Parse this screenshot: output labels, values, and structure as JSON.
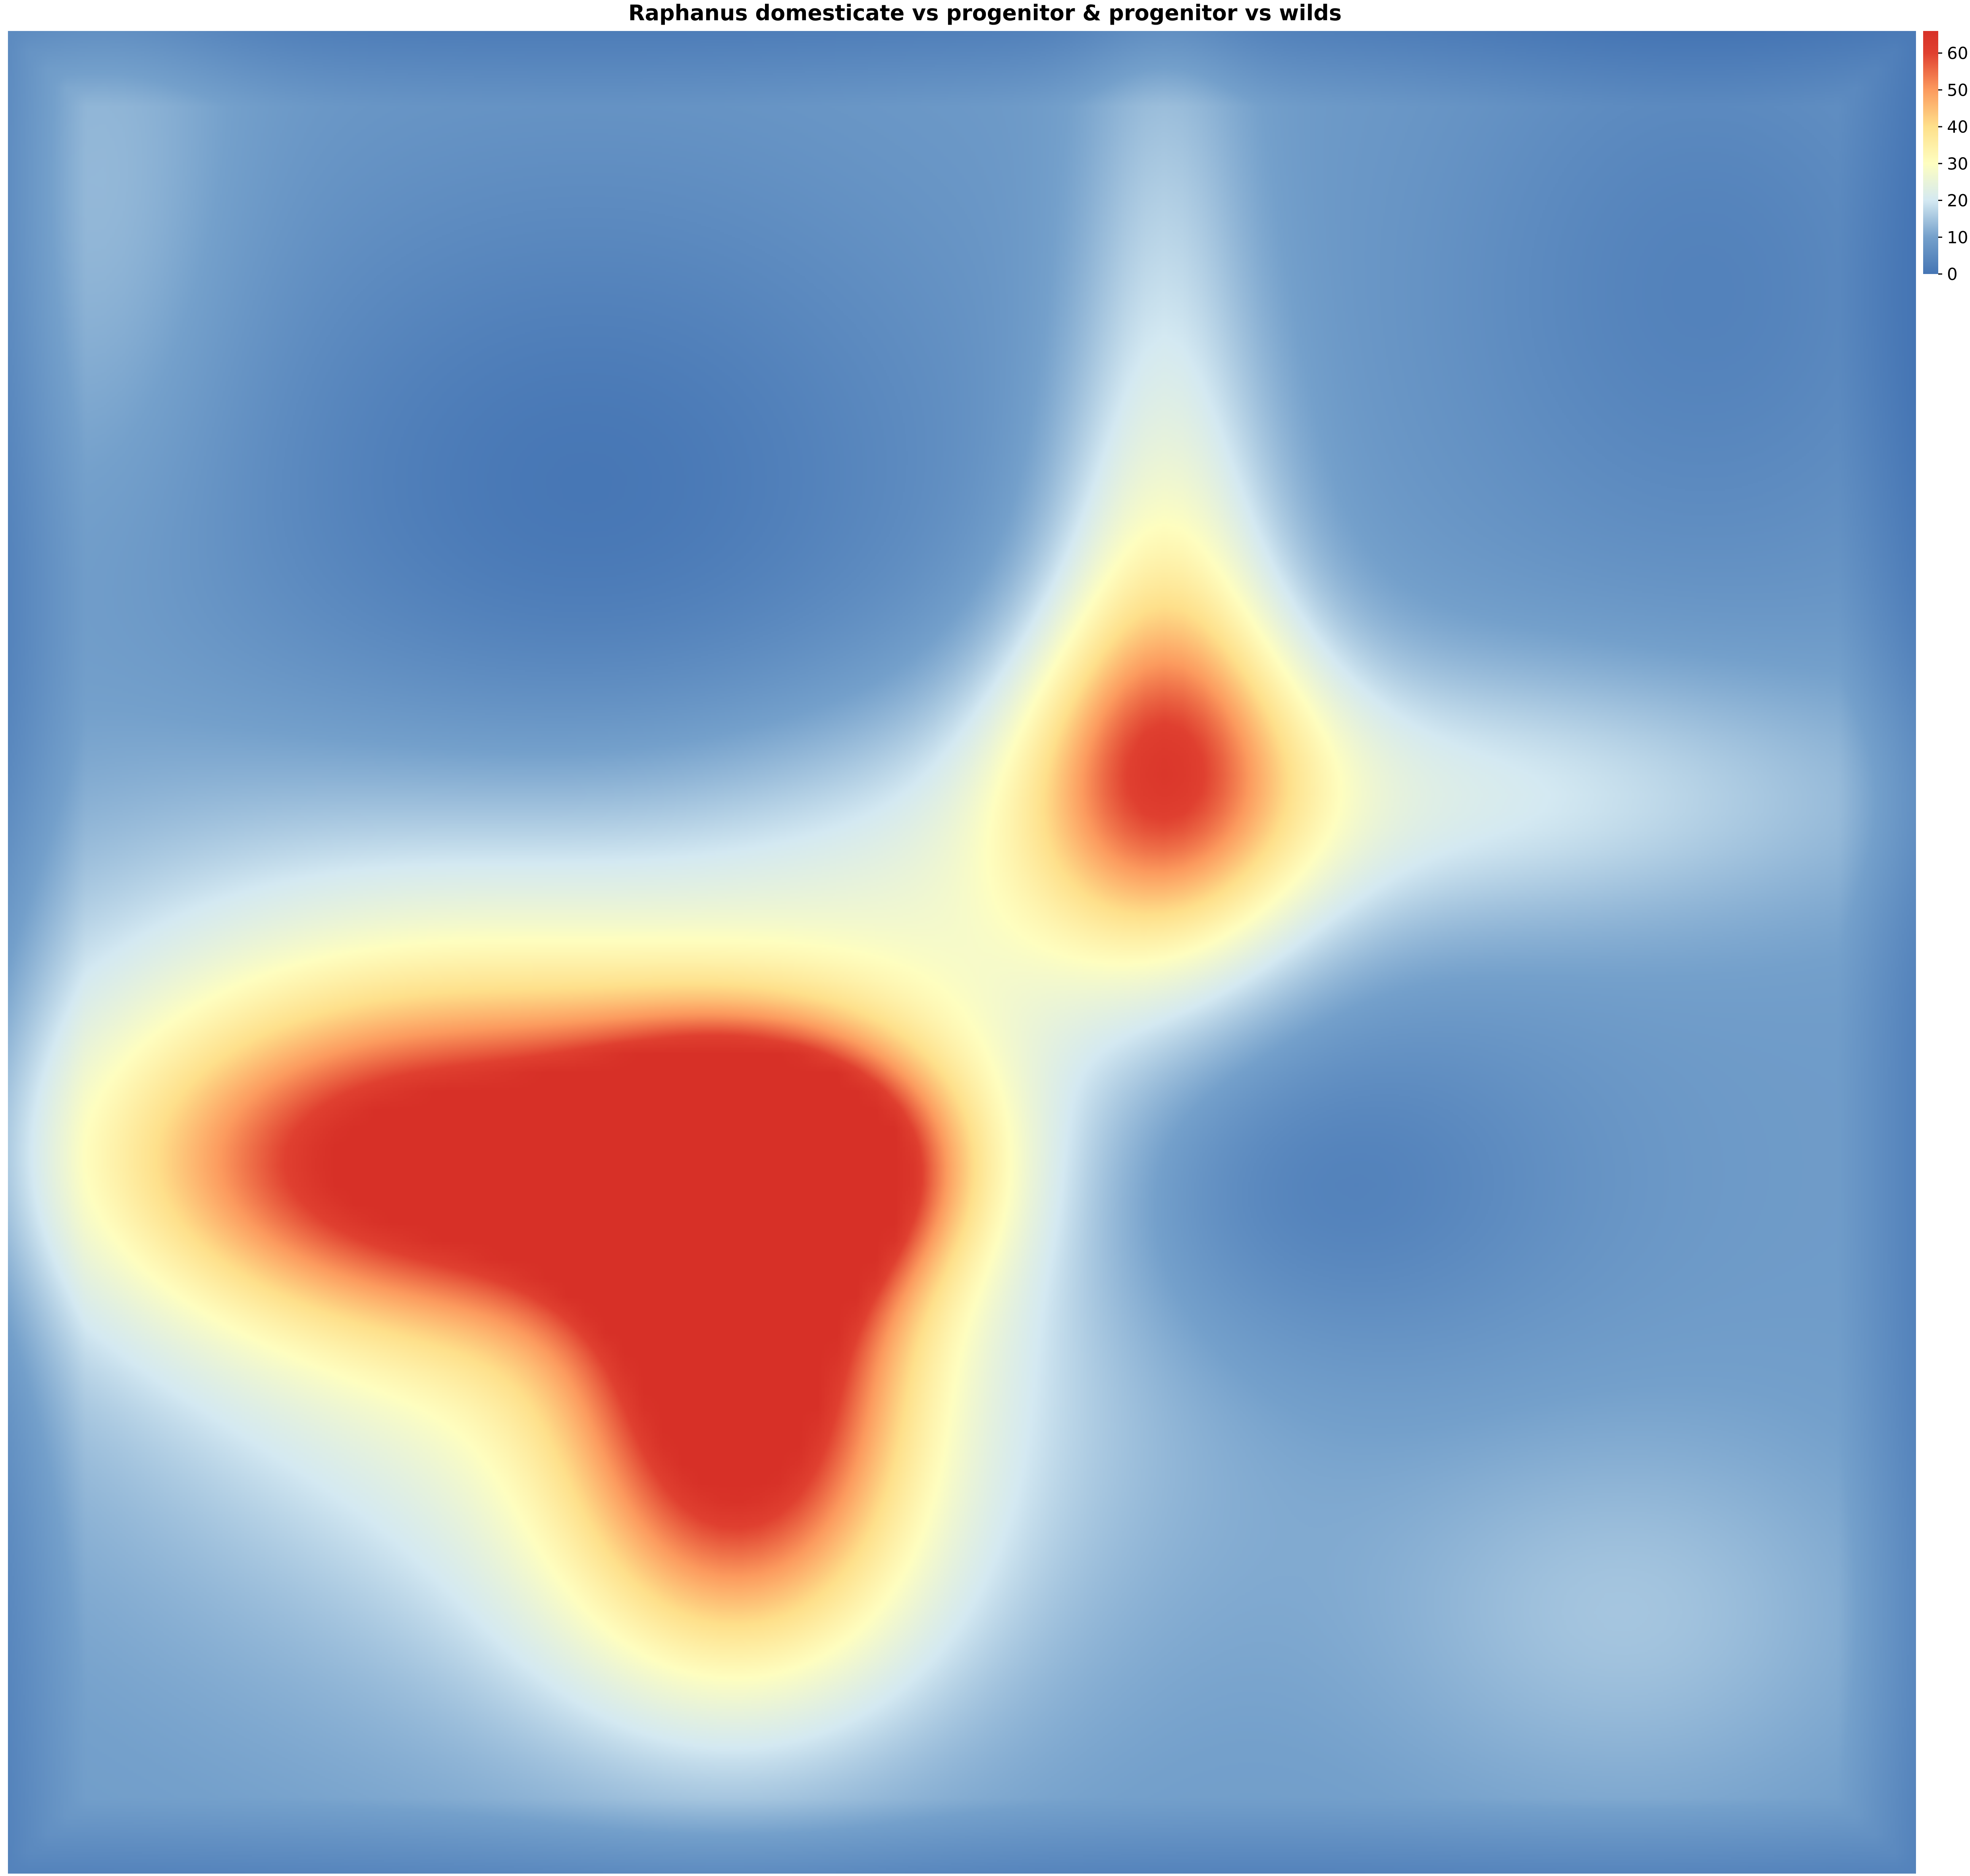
{
  "chart_data": {
    "type": "heatmap",
    "title": "Raphanus domesticate vs progenitor & progenitor vs wilds",
    "xlabel": "",
    "ylabel": "",
    "grid": false,
    "legend": "colorbar-top-right",
    "colorbar": {
      "min": 0,
      "max": 66,
      "ticks": [
        0,
        10,
        20,
        30,
        40,
        50,
        60
      ],
      "tick_labels": [
        "0",
        "10",
        "20",
        "30",
        "40",
        "50",
        "60"
      ],
      "stops": [
        {
          "value": 0,
          "color": "#4575b4"
        },
        {
          "value": 10,
          "color": "#74a0cb"
        },
        {
          "value": 20,
          "color": "#d4e9f2"
        },
        {
          "value": 30,
          "color": "#fefec0"
        },
        {
          "value": 40,
          "color": "#fee08b"
        },
        {
          "value": 50,
          "color": "#fc9a5e"
        },
        {
          "value": 60,
          "color": "#e04030"
        },
        {
          "value": 66,
          "color": "#d73027"
        }
      ]
    },
    "rows": 100,
    "cols": 100,
    "base_value": 9,
    "hotspots": [
      {
        "row": 61,
        "col": 39,
        "value": 64,
        "sigma_row": 4.5,
        "sigma_col": 6.5
      },
      {
        "row": 61,
        "col": 22,
        "value": 36,
        "sigma_row": 5.5,
        "sigma_col": 11
      },
      {
        "row": 72,
        "col": 38,
        "value": 44,
        "sigma_row": 8,
        "sigma_col": 5.5
      },
      {
        "row": 65,
        "col": 33,
        "value": 24,
        "sigma_row": 14,
        "sigma_col": 17
      },
      {
        "row": 56,
        "col": 18,
        "value": 12,
        "sigma_row": 10,
        "sigma_col": 14
      },
      {
        "row": 83,
        "col": 38,
        "value": 14,
        "sigma_row": 7,
        "sigma_col": 8
      },
      {
        "row": 40,
        "col": 60,
        "value": 32,
        "sigma_row": 6.5,
        "sigma_col": 5.5
      },
      {
        "row": 30,
        "col": 60,
        "value": 18,
        "sigma_row": 10,
        "sigma_col": 4
      },
      {
        "row": 41,
        "col": 74,
        "value": 12,
        "sigma_row": 5,
        "sigma_col": 16
      },
      {
        "row": 48,
        "col": 50,
        "value": 8,
        "sigma_row": 7,
        "sigma_col": 10
      },
      {
        "row": 85,
        "col": 84,
        "value": 6,
        "sigma_row": 7,
        "sigma_col": 9
      },
      {
        "row": 10,
        "col": 5,
        "value": 5,
        "sigma_row": 12,
        "sigma_col": 5
      },
      {
        "row": 10,
        "col": 60,
        "value": 6,
        "sigma_row": 9,
        "sigma_col": 3
      }
    ],
    "cold_spots": [
      {
        "row": 26,
        "col": 30,
        "value": -9,
        "sigma_row": 13,
        "sigma_col": 14
      },
      {
        "row": 62,
        "col": 66,
        "value": -9,
        "sigma_row": 7,
        "sigma_col": 10
      },
      {
        "row": 14,
        "col": 88,
        "value": -6,
        "sigma_row": 12,
        "sigma_col": 10
      }
    ]
  }
}
